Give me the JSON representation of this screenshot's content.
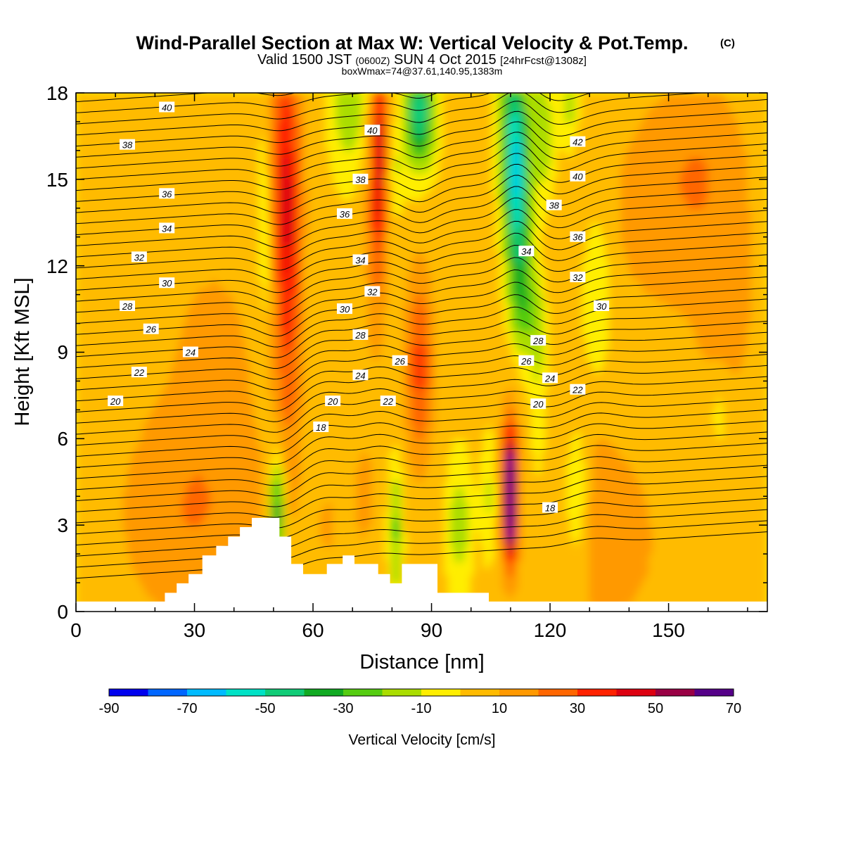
{
  "header": {
    "title": "Wind-Parallel Section at Max W: Vertical Velocity & Pot.Temp.",
    "title_mark": "(C)",
    "valid_prefix": "Valid 1500 JST",
    "valid_utc": "(0600Z)",
    "valid_date": "SUN 4 Oct 2015",
    "valid_fcst": "[24hrFcst@1308z]",
    "box_info": "boxWmax=74@37.61,140.95,1383m"
  },
  "axes": {
    "xlabel": "Distance [nm]",
    "ylabel": "Height [Kft MSL]",
    "x_ticks": [
      "0",
      "30",
      "60",
      "90",
      "120",
      "150"
    ],
    "y_ticks": [
      "0",
      "3",
      "6",
      "9",
      "12",
      "15",
      "18"
    ]
  },
  "colorbar": {
    "label": "Vertical Velocity [cm/s]",
    "tick_labels": [
      "-90",
      "-70",
      "-50",
      "-30",
      "-10",
      "10",
      "30",
      "50",
      "70"
    ]
  },
  "chart_data": {
    "type": "heatmap",
    "title": "Wind-Parallel Section at Max W: Vertical Velocity & Pot.Temp.",
    "subtitle": "Valid 1500 JST (0600Z) SUN 4 Oct 2015 [24hrFcst@1308z]",
    "xlabel": "Distance [nm]",
    "ylabel": "Height [Kft MSL]",
    "xlim": [
      0,
      175
    ],
    "ylim": [
      0,
      18
    ],
    "x_ticks": [
      0,
      30,
      60,
      90,
      120,
      150
    ],
    "y_ticks": [
      0,
      3,
      6,
      9,
      12,
      15,
      18
    ],
    "colorbar": {
      "label": "Vertical Velocity [cm/s]",
      "boundaries": [
        -90,
        -80,
        -70,
        -60,
        -50,
        -40,
        -30,
        -20,
        -10,
        0,
        10,
        20,
        30,
        40,
        50,
        60,
        70
      ],
      "colors": [
        "#0000ee",
        "#0066ff",
        "#00bbff",
        "#00e2c6",
        "#11cc77",
        "#11aa22",
        "#55cc11",
        "#aadd00",
        "#ffee00",
        "#ffbb00",
        "#ff9900",
        "#ff6600",
        "#ff2200",
        "#dd0011",
        "#990044",
        "#550088"
      ]
    },
    "theta_contours": {
      "variable": "Pot.Temp.",
      "levels": [
        18,
        20,
        22,
        24,
        26,
        28,
        30,
        32,
        34,
        36,
        38,
        40,
        42
      ],
      "labels": [
        {
          "text": "40",
          "x": 23,
          "y": 17.5
        },
        {
          "text": "38",
          "x": 13,
          "y": 16.2
        },
        {
          "text": "36",
          "x": 23,
          "y": 14.5
        },
        {
          "text": "34",
          "x": 23,
          "y": 13.3
        },
        {
          "text": "32",
          "x": 16,
          "y": 12.3
        },
        {
          "text": "30",
          "x": 23,
          "y": 11.4
        },
        {
          "text": "28",
          "x": 13,
          "y": 10.6
        },
        {
          "text": "26",
          "x": 19,
          "y": 9.8
        },
        {
          "text": "24",
          "x": 29,
          "y": 9.0
        },
        {
          "text": "22",
          "x": 16,
          "y": 8.3
        },
        {
          "text": "20",
          "x": 10,
          "y": 7.3
        },
        {
          "text": "40",
          "x": 75,
          "y": 16.7
        },
        {
          "text": "38",
          "x": 72,
          "y": 15.0
        },
        {
          "text": "36",
          "x": 68,
          "y": 13.8
        },
        {
          "text": "34",
          "x": 72,
          "y": 12.2
        },
        {
          "text": "32",
          "x": 75,
          "y": 11.1
        },
        {
          "text": "30",
          "x": 68,
          "y": 10.5
        },
        {
          "text": "28",
          "x": 72,
          "y": 9.6
        },
        {
          "text": "26",
          "x": 82,
          "y": 8.7
        },
        {
          "text": "24",
          "x": 72,
          "y": 8.2
        },
        {
          "text": "22",
          "x": 79,
          "y": 7.3
        },
        {
          "text": "20",
          "x": 65,
          "y": 7.3
        },
        {
          "text": "18",
          "x": 62,
          "y": 6.4
        },
        {
          "text": "42",
          "x": 127,
          "y": 16.3
        },
        {
          "text": "40",
          "x": 127,
          "y": 15.1
        },
        {
          "text": "38",
          "x": 121,
          "y": 14.1
        },
        {
          "text": "36",
          "x": 127,
          "y": 13.0
        },
        {
          "text": "34",
          "x": 114,
          "y": 12.5
        },
        {
          "text": "32",
          "x": 127,
          "y": 11.6
        },
        {
          "text": "30",
          "x": 133,
          "y": 10.6
        },
        {
          "text": "28",
          "x": 117,
          "y": 9.4
        },
        {
          "text": "26",
          "x": 114,
          "y": 8.7
        },
        {
          "text": "24",
          "x": 120,
          "y": 8.1
        },
        {
          "text": "22",
          "x": 127,
          "y": 7.7
        },
        {
          "text": "20",
          "x": 117,
          "y": 7.2
        },
        {
          "text": "18",
          "x": 120,
          "y": 3.6
        }
      ]
    },
    "terrain_profile": {
      "x": [
        0,
        22.5,
        22.5,
        25.5,
        25.5,
        28.5,
        28.5,
        32,
        32,
        35.5,
        35.5,
        38.5,
        38.5,
        41.5,
        41.5,
        44.5,
        44.5,
        51.5,
        51.5,
        54.5,
        54.5,
        57.5,
        57.5,
        63.5,
        63.5,
        67.5,
        67.5,
        70.5,
        70.5,
        76.5,
        76.5,
        79.5,
        79.5,
        82.5,
        82.5,
        85.5,
        85.5,
        91.5,
        91.5,
        104.5,
        104.5,
        107.5,
        107.5,
        110.5,
        110.5,
        175
      ],
      "y": [
        0.35,
        0.35,
        0.65,
        0.65,
        0.98,
        0.98,
        1.3,
        1.3,
        1.95,
        1.95,
        2.28,
        2.28,
        2.6,
        2.6,
        2.93,
        2.93,
        3.25,
        3.25,
        2.6,
        2.6,
        1.65,
        1.65,
        1.3,
        1.3,
        1.65,
        1.65,
        1.95,
        1.95,
        1.65,
        1.65,
        1.3,
        1.3,
        0.98,
        0.98,
        1.65,
        1.65,
        1.65,
        1.65,
        0.65,
        0.65,
        0.35,
        0.35,
        0.35,
        0.35,
        0.35,
        0.35
      ]
    },
    "w_features": [
      {
        "name": "updraft-column-west",
        "x": 54,
        "y_range": [
          6,
          18
        ],
        "w": 30
      },
      {
        "name": "downdraft-column-west",
        "x": 51,
        "y_range": [
          1.5,
          6
        ],
        "w": -40
      },
      {
        "name": "updraft-column-mid",
        "x": 77,
        "y_range": [
          13,
          18
        ],
        "w": 35
      },
      {
        "name": "downdraft-column-mid",
        "x": 86,
        "y_range": [
          15,
          18
        ],
        "w": -50
      },
      {
        "name": "updraft-lee",
        "x": 87,
        "y_range": [
          6,
          11
        ],
        "w": 25
      },
      {
        "name": "downdraft-column-east",
        "x": 110,
        "y_range": [
          11,
          18
        ],
        "w": -45
      },
      {
        "name": "updraft-max",
        "x": 110,
        "y": 3.7,
        "w": 74
      }
    ]
  }
}
